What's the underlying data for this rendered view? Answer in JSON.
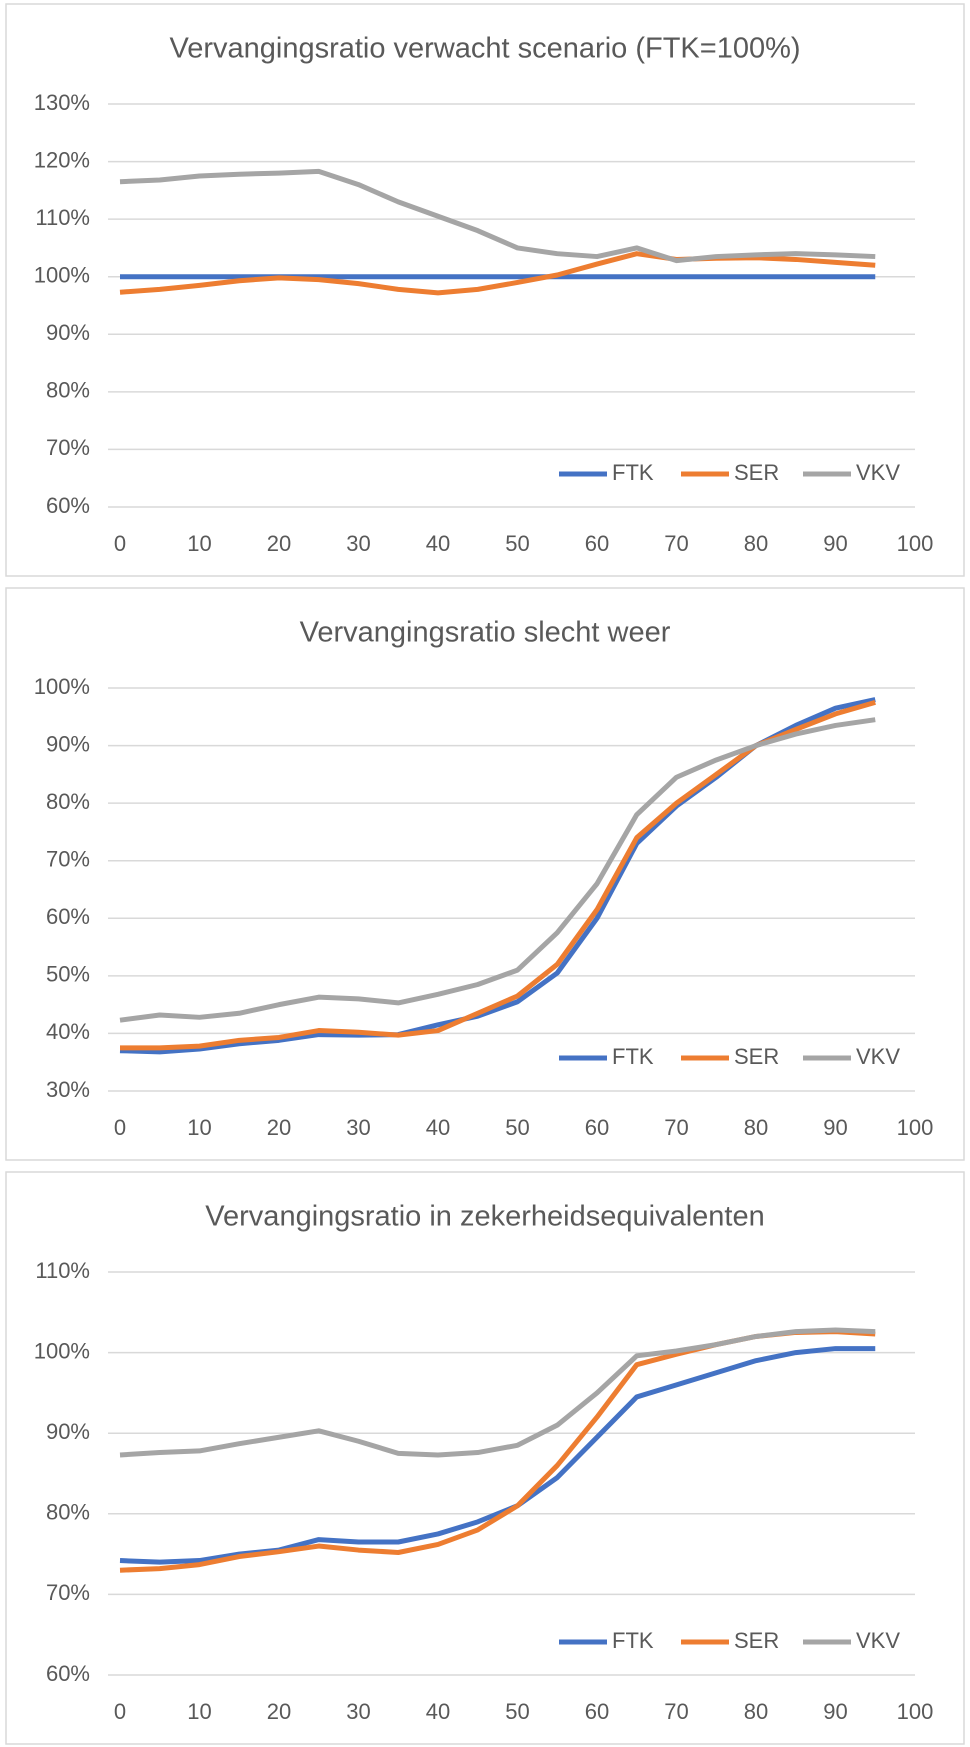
{
  "chart_data": [
    {
      "type": "line",
      "title": "Vervangingsratio verwacht scenario (FTK=100%)",
      "x": [
        0,
        5,
        10,
        15,
        20,
        25,
        30,
        35,
        40,
        45,
        50,
        55,
        60,
        65,
        70,
        75,
        80,
        85,
        90,
        95
      ],
      "series": [
        {
          "name": "FTK",
          "color": "#4472c4",
          "values": [
            100,
            100,
            100,
            100,
            100,
            100,
            100,
            100,
            100,
            100,
            100,
            100,
            100,
            100,
            100,
            100,
            100,
            100,
            100,
            100
          ]
        },
        {
          "name": "SER",
          "color": "#ed7d31",
          "values": [
            97.3,
            97.8,
            98.5,
            99.3,
            99.8,
            99.5,
            98.8,
            97.8,
            97.2,
            97.8,
            99.0,
            100.3,
            102.2,
            104.0,
            103.0,
            103.2,
            103.3,
            103.0,
            102.5,
            102.0
          ]
        },
        {
          "name": "VKV",
          "color": "#a5a5a5",
          "values": [
            116.5,
            116.8,
            117.5,
            117.8,
            118.0,
            118.3,
            116.0,
            113.0,
            110.5,
            108.0,
            105.0,
            104.0,
            103.5,
            105.0,
            102.8,
            103.5,
            103.8,
            104.0,
            103.8,
            103.5
          ]
        }
      ],
      "xlim": [
        0,
        100
      ],
      "xticks": [
        0,
        10,
        20,
        30,
        40,
        50,
        60,
        70,
        80,
        90,
        100
      ],
      "ylim": [
        60,
        130
      ],
      "yticks": [
        {
          "value": 60,
          "label": "60%"
        },
        {
          "value": 70,
          "label": "70%"
        },
        {
          "value": 80,
          "label": "80%"
        },
        {
          "value": 90,
          "label": "90%"
        },
        {
          "value": 100,
          "label": "100%"
        },
        {
          "value": 110,
          "label": "110%"
        },
        {
          "value": 120,
          "label": "120%"
        },
        {
          "value": 130,
          "label": "130%"
        }
      ],
      "grid": true,
      "legend": "lower right"
    },
    {
      "type": "line",
      "title": "Vervangingsratio slecht weer",
      "x": [
        0,
        5,
        10,
        15,
        20,
        25,
        30,
        35,
        40,
        45,
        50,
        55,
        60,
        65,
        70,
        75,
        80,
        85,
        90,
        95
      ],
      "series": [
        {
          "name": "FTK",
          "color": "#4472c4",
          "values": [
            37,
            36.8,
            37.3,
            38.2,
            38.8,
            39.8,
            39.7,
            39.8,
            41.5,
            43,
            45.5,
            50.5,
            60,
            73,
            79.5,
            84.5,
            90,
            93.5,
            96.5,
            98
          ]
        },
        {
          "name": "SER",
          "color": "#ed7d31",
          "values": [
            37.5,
            37.5,
            37.8,
            38.8,
            39.3,
            40.5,
            40.2,
            39.7,
            40.5,
            43.5,
            46.5,
            52,
            61.5,
            74,
            80,
            85,
            90,
            92.8,
            95.5,
            97.5
          ]
        },
        {
          "name": "VKV",
          "color": "#a5a5a5",
          "values": [
            42.3,
            43.2,
            42.8,
            43.5,
            45,
            46.3,
            46,
            45.3,
            46.8,
            48.5,
            51,
            57.5,
            66,
            78,
            84.5,
            87.5,
            90,
            92,
            93.5,
            94.5
          ]
        }
      ],
      "xlim": [
        0,
        100
      ],
      "xticks": [
        0,
        10,
        20,
        30,
        40,
        50,
        60,
        70,
        80,
        90,
        100
      ],
      "ylim": [
        30,
        100
      ],
      "yticks": [
        {
          "value": 30,
          "label": "30%"
        },
        {
          "value": 40,
          "label": "40%"
        },
        {
          "value": 50,
          "label": "50%"
        },
        {
          "value": 60,
          "label": "60%"
        },
        {
          "value": 70,
          "label": "70%"
        },
        {
          "value": 80,
          "label": "80%"
        },
        {
          "value": 90,
          "label": "90%"
        },
        {
          "value": 100,
          "label": "100%"
        }
      ],
      "grid": true,
      "legend": "lower right"
    },
    {
      "type": "line",
      "title": "Vervangingsratio in zekerheidsequivalenten",
      "x": [
        0,
        5,
        10,
        15,
        20,
        25,
        30,
        35,
        40,
        45,
        50,
        55,
        60,
        65,
        70,
        75,
        80,
        85,
        90,
        95
      ],
      "series": [
        {
          "name": "FTK",
          "color": "#4472c4",
          "values": [
            74.2,
            74,
            74.2,
            75,
            75.5,
            76.8,
            76.5,
            76.5,
            77.5,
            79,
            81,
            84.5,
            89.5,
            94.5,
            96,
            97.5,
            99,
            100,
            100.5,
            100.5
          ]
        },
        {
          "name": "SER",
          "color": "#ed7d31",
          "values": [
            73,
            73.2,
            73.7,
            74.7,
            75.3,
            76,
            75.5,
            75.2,
            76.2,
            78,
            81,
            86,
            92,
            98.5,
            99.8,
            101,
            102,
            102.5,
            102.6,
            102.3
          ]
        },
        {
          "name": "VKV",
          "color": "#a5a5a5",
          "values": [
            87.3,
            87.6,
            87.8,
            88.7,
            89.5,
            90.3,
            89,
            87.5,
            87.3,
            87.6,
            88.5,
            91,
            95,
            99.6,
            100.2,
            101,
            102,
            102.6,
            102.8,
            102.6
          ]
        }
      ],
      "xlim": [
        0,
        100
      ],
      "xticks": [
        0,
        10,
        20,
        30,
        40,
        50,
        60,
        70,
        80,
        90,
        100
      ],
      "ylim": [
        60,
        110
      ],
      "yticks": [
        {
          "value": 60,
          "label": "60%"
        },
        {
          "value": 70,
          "label": "70%"
        },
        {
          "value": 80,
          "label": "80%"
        },
        {
          "value": 90,
          "label": "90%"
        },
        {
          "value": 100,
          "label": "100%"
        },
        {
          "value": 110,
          "label": "110%"
        }
      ],
      "grid": true,
      "legend": "lower right"
    }
  ]
}
